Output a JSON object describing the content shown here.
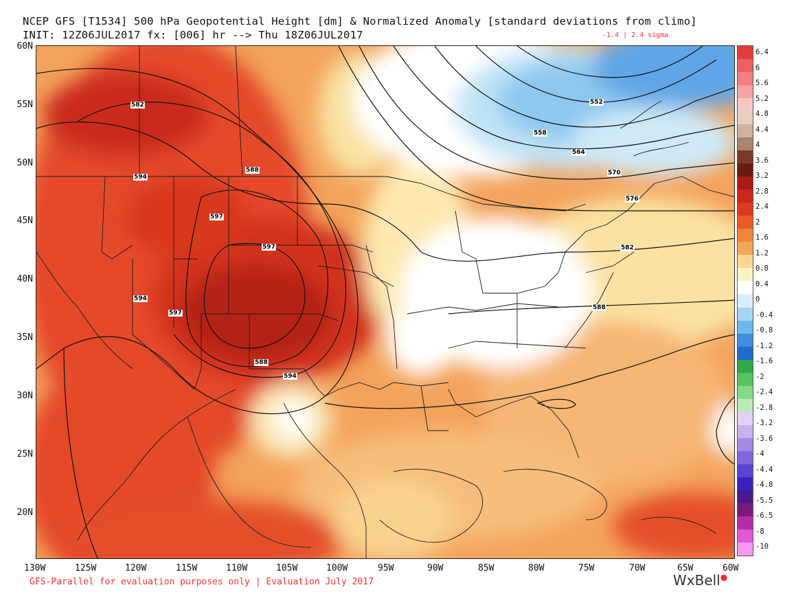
{
  "title": {
    "line1": "NCEP GFS [T1534] 500 hPa Geopotential Height [dm] & Normalized Anomaly [standard deviations from climo]",
    "line2": "INIT: 12Z06JUL2017 fx: [006] hr --> Thu 18Z06JUL2017",
    "minmax": "-1.4 | 2.4 sigma"
  },
  "footer": "GFS-Parallel for evaluation purposes only | Evaluation July 2017",
  "brand": "WxBell",
  "lat_labels": [
    "60N",
    "55N",
    "50N",
    "45N",
    "40N",
    "35N",
    "30N",
    "25N",
    "20N"
  ],
  "lon_labels": [
    "130W",
    "125W",
    "120W",
    "115W",
    "110W",
    "105W",
    "100W",
    "95W",
    "90W",
    "85W",
    "80W",
    "75W",
    "70W",
    "65W",
    "60W"
  ],
  "contour_labels": [
    "582",
    "588",
    "594",
    "597",
    "597",
    "594",
    "597",
    "594",
    "588",
    "552",
    "558",
    "564",
    "570",
    "576",
    "582",
    "588"
  ],
  "colorbar": {
    "labels": [
      "6.4",
      "6",
      "5.6",
      "5.2",
      "4.8",
      "4.4",
      "4",
      "3.6",
      "3.2",
      "2.8",
      "2.4",
      "2",
      "1.6",
      "1.2",
      "0.8",
      "0.4",
      "0",
      "-0.4",
      "-0.8",
      "-1.2",
      "-1.6",
      "-2",
      "-2.4",
      "-2.8",
      "-3.2",
      "-3.6",
      "-4",
      "-4.4",
      "-4.8",
      "-5.5",
      "-6.5",
      "-8",
      "-10"
    ],
    "colors": [
      "#e23c3c",
      "#ee6060",
      "#f28080",
      "#f6a3a3",
      "#f7c7c7",
      "#e6cfc0",
      "#cdb3a0",
      "#a88570",
      "#7a3a2a",
      "#6e1a14",
      "#a81d17",
      "#c9281c",
      "#dc3a1e",
      "#ea5a26",
      "#f08540",
      "#f6a75c",
      "#f9d78e",
      "#fbf2c4",
      "#ffffff",
      "#d9eef8",
      "#a8d6f2",
      "#6fb8ea",
      "#3f8fe0",
      "#1f6bd0",
      "#31a84a",
      "#55c45e",
      "#87d98a",
      "#bce9b8",
      "#e2d2f3",
      "#c9b0ee",
      "#a888e6",
      "#8466dc",
      "#5a44cf",
      "#3a22bf",
      "#4a1a8a",
      "#7a1a7a",
      "#b42da8",
      "#e256d8",
      "#f39af0"
    ]
  }
}
